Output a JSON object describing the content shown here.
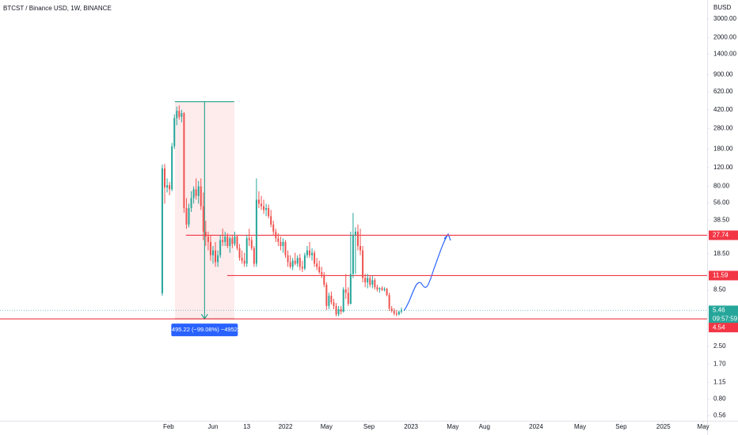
{
  "chart_data": {
    "type": "candlestick",
    "title": "BTCST / Binance USD, 1W, BINANCE",
    "currency": "BUSD",
    "log_scale": true,
    "up_color": "#26a69a",
    "down_color": "#ef5350",
    "ylim": [
      0.5,
      4520
    ],
    "xlim": [
      -67.2,
      225.6
    ],
    "yticks": [
      {
        "value": 3000,
        "label": "3000.00"
      },
      {
        "value": 2000,
        "label": "2000.00"
      },
      {
        "value": 1400,
        "label": "1400.00"
      },
      {
        "value": 900,
        "label": "900.00"
      },
      {
        "value": 620,
        "label": "620.00"
      },
      {
        "value": 420,
        "label": "420.00"
      },
      {
        "value": 280,
        "label": "280.00"
      },
      {
        "value": 180,
        "label": "180.00"
      },
      {
        "value": 120,
        "label": "120.00"
      },
      {
        "value": 80,
        "label": "80.00"
      },
      {
        "value": 56,
        "label": "56.00"
      },
      {
        "value": 38.5,
        "label": "38.50"
      },
      {
        "value": 18.5,
        "label": "18.50"
      },
      {
        "value": 8.5,
        "label": "8.50"
      },
      {
        "value": 2.5,
        "label": "2.50"
      },
      {
        "value": 1.7,
        "label": "1.70"
      },
      {
        "value": 1.15,
        "label": "1.15"
      },
      {
        "value": 0.8,
        "label": "0.80"
      },
      0.56
    ],
    "xticks": [
      {
        "value": 2.6,
        "label": "Feb"
      },
      {
        "value": 21,
        "label": "Jun"
      },
      {
        "value": 35,
        "label": "13"
      },
      {
        "value": 51,
        "label": "2022"
      },
      {
        "value": 68,
        "label": "May"
      },
      {
        "value": 85.6,
        "label": "Sep"
      },
      {
        "value": 103,
        "label": "2023"
      },
      {
        "value": 120.3,
        "label": "May"
      },
      {
        "value": 133.4,
        "label": "Aug"
      },
      {
        "value": 154.8,
        "label": "2024"
      },
      {
        "value": 173,
        "label": "May"
      },
      {
        "value": 190,
        "label": "Sep"
      },
      {
        "value": 207.5,
        "label": "2025"
      },
      {
        "value": 224,
        "label": "May"
      }
    ],
    "x": [
      0,
      1,
      2,
      3,
      4,
      5,
      6,
      7,
      8,
      9,
      10,
      11,
      12,
      13,
      14,
      15,
      16,
      17,
      18,
      19,
      20,
      21,
      22,
      23,
      24,
      25,
      26,
      27,
      28,
      29,
      30,
      31,
      32,
      33,
      34,
      35,
      36,
      37,
      38,
      39,
      40,
      41,
      42,
      43,
      44,
      45,
      46,
      47,
      48,
      49,
      50,
      51,
      52,
      53,
      54,
      55,
      56,
      57,
      58,
      59,
      60,
      61,
      62,
      63,
      64,
      65,
      66,
      67,
      68,
      69,
      70,
      71,
      72,
      73,
      74,
      75,
      76,
      77,
      78,
      79,
      80,
      81,
      82,
      83,
      84,
      85,
      86,
      87,
      88,
      89,
      90,
      91,
      92,
      93,
      94,
      95,
      96,
      97,
      98,
      99
    ],
    "open": [
      7.9,
      118,
      78,
      82,
      75,
      190,
      350,
      410,
      360,
      390,
      50,
      35,
      50,
      62,
      75,
      65,
      80,
      52,
      30,
      27,
      24,
      18,
      20,
      15.5,
      18,
      25,
      24,
      27,
      22,
      26,
      23,
      27,
      21,
      17,
      16,
      15,
      26,
      25,
      21,
      15,
      60,
      55,
      52,
      48,
      50,
      42,
      35,
      30,
      26,
      24,
      22,
      24,
      18,
      15.5,
      14,
      16,
      15,
      17,
      14,
      13.5,
      18,
      20,
      18,
      19,
      15,
      14,
      12.5,
      11.8,
      9.5,
      6,
      7.5,
      6.5,
      6,
      5,
      5.6,
      5.3,
      8.6,
      8,
      6.3,
      12,
      28,
      30,
      22,
      20,
      11,
      10,
      11,
      9.5,
      10.5,
      9,
      8.6,
      8.8,
      8.5,
      8.7,
      7.6,
      5.7,
      5.4,
      5.1,
      5.0,
      5.3
    ],
    "high": [
      128,
      130,
      95,
      88,
      205,
      380,
      450,
      460,
      420,
      400,
      62,
      55,
      72,
      80,
      95,
      90,
      95,
      70,
      38,
      30,
      28,
      22,
      24,
      20,
      28,
      32,
      30,
      29,
      27,
      28,
      30,
      28,
      23,
      20,
      19,
      28,
      32,
      27,
      22,
      95,
      72,
      65,
      60,
      55,
      54,
      48,
      38,
      32,
      29,
      27,
      26,
      25,
      20,
      18,
      17,
      19,
      18,
      18.5,
      16,
      19,
      22,
      24,
      21,
      20,
      17,
      16,
      14,
      12.5,
      10,
      8,
      8.2,
      7,
      6.4,
      6,
      6,
      9,
      12,
      9,
      30,
      45,
      33,
      35,
      32,
      22,
      12,
      12,
      11.5,
      11.5,
      11,
      9.5,
      9,
      9.2,
      9,
      8.9,
      8,
      6,
      5.7,
      5.5,
      5.4,
      5.8
    ],
    "low": [
      7.5,
      55,
      70,
      66,
      72,
      180,
      300,
      340,
      320,
      45,
      32,
      33,
      46,
      55,
      60,
      55,
      48,
      25,
      22,
      20,
      16,
      15,
      14,
      14,
      17,
      22,
      22,
      21,
      19,
      21,
      22,
      20,
      16,
      15,
      14,
      14,
      22,
      20,
      14,
      14,
      50,
      48,
      44,
      42,
      40,
      33,
      28,
      24,
      22,
      20,
      19,
      17,
      14,
      13.5,
      13,
      14.5,
      14,
      13,
      12.5,
      13,
      17,
      17,
      16,
      14,
      13,
      12,
      11,
      9,
      5.5,
      5.6,
      6.2,
      5.6,
      4.8,
      4.8,
      5,
      5.2,
      7,
      6,
      6.2,
      11,
      12,
      20,
      18,
      10,
      9,
      8.8,
      9,
      8.8,
      8.6,
      8.2,
      8,
      8.3,
      8.2,
      7.4,
      5.4,
      5.2,
      4.9,
      4.8,
      4.9,
      5.1
    ],
    "close": [
      118,
      78,
      82,
      75,
      190,
      350,
      410,
      360,
      390,
      50,
      35,
      50,
      62,
      75,
      65,
      80,
      52,
      30,
      27,
      24,
      18,
      20,
      15.5,
      18,
      25,
      24,
      27,
      22,
      26,
      23,
      27,
      21,
      17,
      16,
      15,
      26,
      25,
      21,
      15,
      60,
      55,
      52,
      48,
      50,
      42,
      35,
      30,
      26,
      24,
      22,
      24,
      18,
      15.5,
      14,
      16,
      15,
      17,
      14,
      13.5,
      18,
      20,
      18,
      19,
      15,
      14,
      12.5,
      11.8,
      9.5,
      6,
      7.5,
      6.5,
      6,
      5,
      5.6,
      5.3,
      8.6,
      8,
      6.3,
      12,
      28,
      30,
      22,
      20,
      11,
      10,
      11,
      9.5,
      10.5,
      9,
      8.6,
      8.8,
      8.5,
      8.7,
      7.6,
      5.7,
      5.4,
      5.1,
      5.0,
      5.3,
      5.46
    ],
    "last_price": 5.46,
    "countdown": "09:57:59",
    "hlines": [
      {
        "value": 27.74,
        "from": 9.8
      },
      {
        "value": 11.59,
        "from": 26.9
      },
      {
        "value": 4.54,
        "from": -67.2
      }
    ],
    "measure": {
      "x": [
        5.2,
        29.8
      ],
      "from": 499.76,
      "to": 4.54,
      "label": "−495.22 (−99.08%) −49522"
    }
  }
}
